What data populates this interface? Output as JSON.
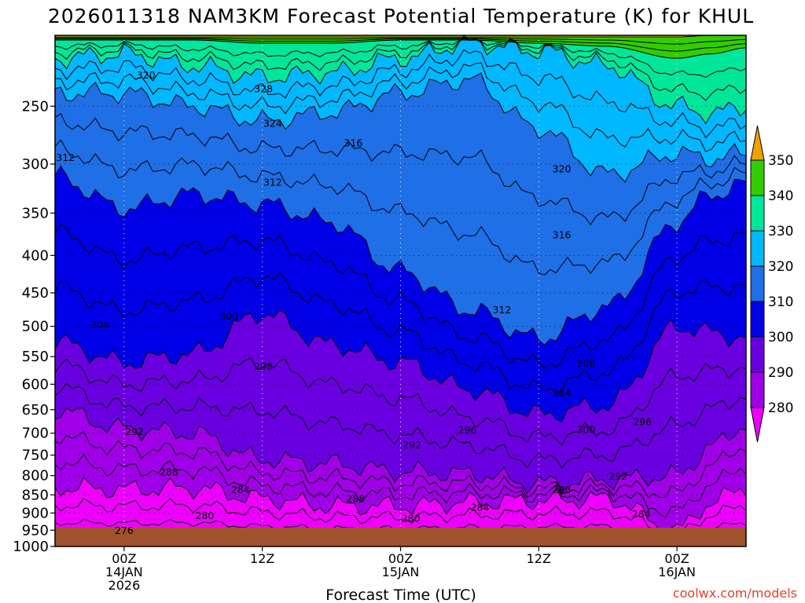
{
  "chart_data": {
    "type": "heatmap",
    "title": "2026011318 NAM3KM Forecast Potential Temperature (K) for KHUL",
    "xlabel": "Forecast Time (UTC)",
    "ylabel": "",
    "credit": "coolwx.com/models",
    "x_ticks": [
      {
        "hour": 6,
        "line1": "00Z",
        "line2": "14JAN",
        "line3": "2026"
      },
      {
        "hour": 18,
        "line1": "12Z",
        "line2": "",
        "line3": ""
      },
      {
        "hour": 30,
        "line1": "00Z",
        "line2": "15JAN",
        "line3": ""
      },
      {
        "hour": 42,
        "line1": "12Z",
        "line2": "",
        "line3": ""
      },
      {
        "hour": 54,
        "line1": "00Z",
        "line2": "16JAN",
        "line3": ""
      }
    ],
    "xlim": [
      0,
      60
    ],
    "ylim": [
      1000,
      200
    ],
    "y_scale": "log-pressure",
    "y_ticks": [
      "250",
      "300",
      "350",
      "400",
      "450",
      "500",
      "550",
      "600",
      "650",
      "700",
      "750",
      "800",
      "850",
      "900",
      "950",
      "1000"
    ],
    "colorbar": {
      "levels": [
        "280",
        "290",
        "300",
        "310",
        "320",
        "330",
        "340",
        "350"
      ],
      "colors": [
        "#a000e8",
        "#6a00e0",
        "#0000e6",
        "#1f6fe6",
        "#00b8ff",
        "#00e69a",
        "#33cc00",
        "#e6f000"
      ],
      "under_color": "#ee00ff",
      "over_color": "#f0a000"
    },
    "ground_color": "#a0522d",
    "band_colors": [
      "#ee00ff",
      "#a000e8",
      "#6a00e0",
      "#0000e6",
      "#1f6fe6",
      "#00b8ff",
      "#00e69a",
      "#33cc00",
      "#e6f000"
    ],
    "band_boundaries": [
      {
        "hours": [
          0,
          6,
          12,
          18,
          24,
          30,
          36,
          42,
          48,
          54,
          57,
          60
        ],
        "pressure": [
          830,
          835,
          832,
          860,
          880,
          880,
          870,
          865,
          860,
          950,
          870,
          830
        ]
      },
      {
        "hours": [
          0,
          6,
          12,
          18,
          24,
          30,
          36,
          42,
          48,
          54,
          57,
          60
        ],
        "pressure": [
          650,
          690,
          700,
          760,
          770,
          790,
          795,
          820,
          810,
          800,
          730,
          680
        ]
      },
      {
        "hours": [
          0,
          6,
          12,
          18,
          24,
          30,
          36,
          42,
          48,
          54,
          57,
          60
        ],
        "pressure": [
          525,
          560,
          545,
          480,
          530,
          560,
          610,
          660,
          640,
          500,
          510,
          520
        ]
      },
      {
        "hours": [
          0,
          6,
          12,
          18,
          24,
          30,
          36,
          42,
          48,
          54,
          57,
          60
        ],
        "pressure": [
          312,
          345,
          330,
          340,
          360,
          420,
          475,
          520,
          470,
          360,
          330,
          320
        ]
      },
      {
        "hours": [
          0,
          6,
          12,
          18,
          24,
          30,
          36,
          42,
          48,
          54,
          57,
          60
        ],
        "pressure": [
          240,
          240,
          250,
          262,
          255,
          240,
          230,
          268,
          310,
          290,
          295,
          290
        ]
      },
      {
        "hours": [
          0,
          6,
          12,
          18,
          24,
          30,
          36,
          42,
          48,
          54,
          57,
          60
        ],
        "pressure": [
          215,
          212,
          220,
          228,
          225,
          215,
          205,
          210,
          220,
          250,
          256,
          250
        ]
      },
      {
        "hours": [
          0,
          6,
          12,
          18,
          24,
          30,
          36,
          42,
          48,
          54,
          57,
          60
        ],
        "pressure": [
          203,
          203,
          203,
          205,
          205,
          203,
          203,
          205,
          207,
          215,
          212,
          208
        ]
      },
      {
        "hours": [
          0,
          6,
          12,
          18,
          24,
          30,
          36,
          42,
          48,
          54,
          57,
          60
        ],
        "pressure": [
          201,
          201,
          201,
          201,
          201,
          201,
          201,
          201,
          201,
          201,
          200,
          200
        ]
      }
    ],
    "annotations": [
      {
        "text": "320",
        "hour": 7.9,
        "pressure": 227
      },
      {
        "text": "328",
        "hour": 18.1,
        "pressure": 237
      },
      {
        "text": "324",
        "hour": 18.9,
        "pressure": 264
      },
      {
        "text": "316",
        "hour": 25.9,
        "pressure": 281
      },
      {
        "text": "312",
        "hour": 0.9,
        "pressure": 294
      },
      {
        "text": "312",
        "hour": 18.9,
        "pressure": 318
      },
      {
        "text": "320",
        "hour": 44.0,
        "pressure": 305
      },
      {
        "text": "316",
        "hour": 44.0,
        "pressure": 375
      },
      {
        "text": "312",
        "hour": 38.8,
        "pressure": 475
      },
      {
        "text": "304",
        "hour": 3.9,
        "pressure": 498
      },
      {
        "text": "300",
        "hour": 15.1,
        "pressure": 485
      },
      {
        "text": "308",
        "hour": 46.1,
        "pressure": 562
      },
      {
        "text": "298",
        "hour": 18.1,
        "pressure": 568
      },
      {
        "text": "304",
        "hour": 44.0,
        "pressure": 617
      },
      {
        "text": "296",
        "hour": 51.0,
        "pressure": 676
      },
      {
        "text": "300",
        "hour": 46.1,
        "pressure": 693
      },
      {
        "text": "296",
        "hour": 35.8,
        "pressure": 694
      },
      {
        "text": "292",
        "hour": 6.9,
        "pressure": 697
      },
      {
        "text": "292",
        "hour": 31.0,
        "pressure": 727
      },
      {
        "text": "288",
        "hour": 9.9,
        "pressure": 792
      },
      {
        "text": "292",
        "hour": 48.9,
        "pressure": 802
      },
      {
        "text": "284",
        "hour": 16.1,
        "pressure": 837
      },
      {
        "text": "288",
        "hour": 44.0,
        "pressure": 837
      },
      {
        "text": "288",
        "hour": 26.1,
        "pressure": 861
      },
      {
        "text": "284",
        "hour": 36.9,
        "pressure": 885
      },
      {
        "text": "280",
        "hour": 13.0,
        "pressure": 908
      },
      {
        "text": "284",
        "hour": 50.9,
        "pressure": 904
      },
      {
        "text": "280",
        "hour": 30.9,
        "pressure": 916
      },
      {
        "text": "276",
        "hour": 6.0,
        "pressure": 952
      }
    ],
    "grid": true
  }
}
